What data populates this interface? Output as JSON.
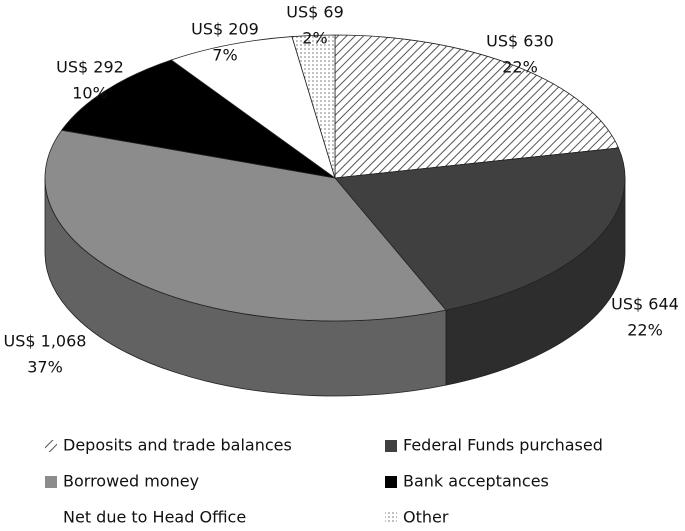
{
  "chart_data": {
    "type": "pie3d",
    "categories": [
      "Deposits and trade balances",
      "Federal Funds purchased",
      "Borrowed money",
      "Bank acceptances",
      "Net due to Head Office",
      "Other"
    ],
    "values": [
      630,
      644,
      1068,
      292,
      209,
      69
    ],
    "value_labels": [
      "US$ 630",
      "US$ 644",
      "US$ 1,068",
      "US$ 292",
      "US$ 209",
      "US$ 69"
    ],
    "percent_labels": [
      "22%",
      "22%",
      "37%",
      "10%",
      "7%",
      "2%"
    ],
    "fills": [
      "hatched",
      "#404040",
      "#8c8c8c",
      "#000000",
      "#ffffff",
      "dotted"
    ]
  }
}
